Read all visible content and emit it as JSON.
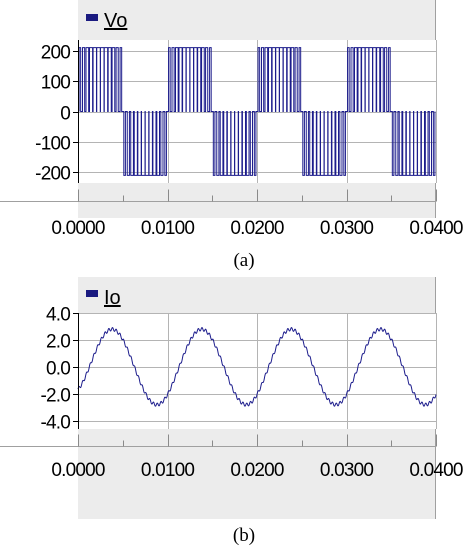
{
  "colors": {
    "panel": "#ececec",
    "border": "#a0a0a0",
    "grid": "#b4b4b4",
    "trace": "#1c1c8c",
    "legend_marker": "#1a1a80"
  },
  "chart_data": [
    {
      "type": "line",
      "legend": "Vo",
      "caption": "(a)",
      "xlim": [
        0.0,
        0.04
      ],
      "ylim": [
        -235,
        235
      ],
      "yticks": [
        200,
        100,
        0,
        -100,
        -200
      ],
      "ytick_labels": [
        "200",
        "100",
        "0",
        "-100",
        "-200"
      ],
      "xticks": [
        0.0,
        0.01,
        0.02,
        0.03,
        0.04
      ],
      "xtick_labels": [
        "0.0000",
        "0.0100",
        "0.0200",
        "0.0300",
        "0.0400"
      ],
      "grid": true,
      "waveform": {
        "kind": "unipolar-pwm",
        "fundamental_hz": 100,
        "amplitude": 210,
        "pulses_per_half_cycle": 12
      }
    },
    {
      "type": "line",
      "legend": "Io",
      "caption": "(b)",
      "xlim": [
        0.0,
        0.04
      ],
      "ylim": [
        -4.6,
        4.0
      ],
      "yticks": [
        4.0,
        2.0,
        0.0,
        -2.0,
        -4.0
      ],
      "ytick_labels": [
        "4.0",
        "2.0",
        "0.0",
        "-2.0",
        "-4.0"
      ],
      "xticks": [
        0.0,
        0.01,
        0.02,
        0.03,
        0.04
      ],
      "xtick_labels": [
        "0.0000",
        "0.0100",
        "0.0200",
        "0.0300",
        "0.0400"
      ],
      "grid": true,
      "waveform": {
        "kind": "sine-with-ripple",
        "fundamental_hz": 100,
        "amplitude": 2.8,
        "phase_delay_s": 0.0013,
        "offset_at_zero": 0.4
      }
    }
  ]
}
